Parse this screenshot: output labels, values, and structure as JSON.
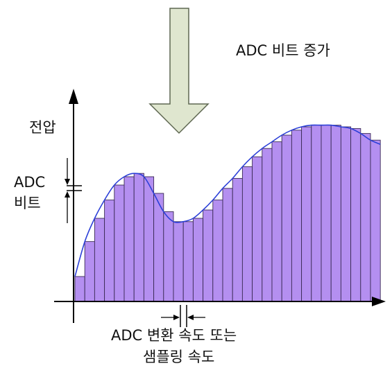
{
  "labels": {
    "adc_bits_increase": "ADC 비트 증가",
    "voltage": "전압",
    "adc_bits_line1": "ADC",
    "adc_bits_line2": "비트",
    "sample_rate_line1": "ADC 변환 속도 또는",
    "sample_rate_line2": "샘플링 속도"
  },
  "colors": {
    "bar_fill": "#b48ff0",
    "bar_stroke": "#3a2a55",
    "curve": "#2b3fd8",
    "arrow_fill": "#dfe6cf",
    "arrow_stroke": "#5d6650",
    "axis": "#000000"
  },
  "samples": [
    0.15,
    0.36,
    0.5,
    0.61,
    0.7,
    0.75,
    0.77,
    0.75,
    0.65,
    0.54,
    0.48,
    0.48,
    0.5,
    0.55,
    0.61,
    0.68,
    0.74,
    0.81,
    0.87,
    0.92,
    0.96,
    1.0,
    1.03,
    1.05,
    1.06,
    1.06,
    1.06,
    1.05,
    1.04,
    1.01,
    0.97
  ]
}
